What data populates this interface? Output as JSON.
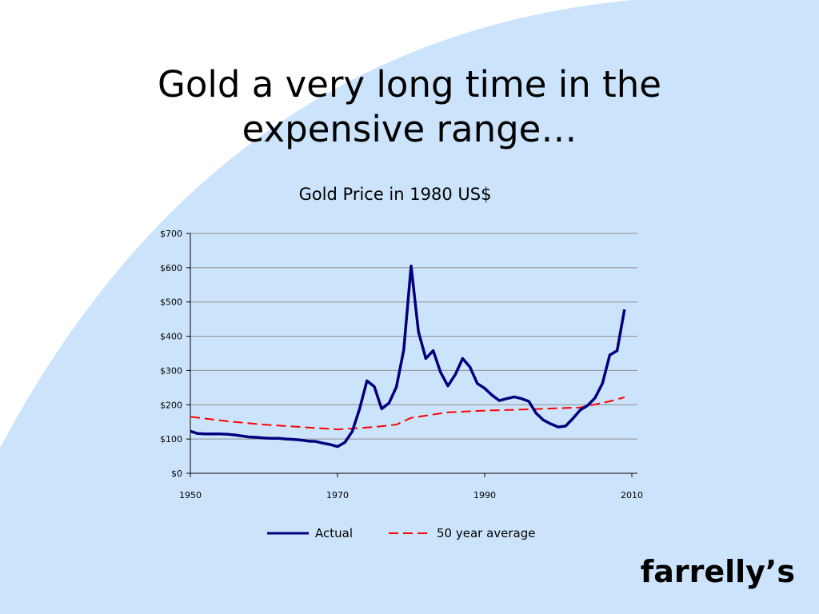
{
  "slide": {
    "title_line1": "Gold a very long time in the",
    "title_line2": "expensive range…",
    "brand": "farrelly’s"
  },
  "colors": {
    "background_arc": "#cce4fb",
    "actual": "#00007f",
    "average": "#ff0000",
    "grid": "#8c8c8c"
  },
  "chart_data": {
    "type": "line",
    "title": "Gold Price in 1980 US$",
    "xlabel": "",
    "ylabel": "",
    "xlim": [
      1950,
      2010
    ],
    "ylim": [
      0,
      700
    ],
    "x_ticks": [
      "1950",
      "1970",
      "1990",
      "2010"
    ],
    "x_tick_values": [
      1950,
      1970,
      1990,
      2010
    ],
    "y_ticks": [
      "$0",
      "$100",
      "$200",
      "$300",
      "$400",
      "$500",
      "$600",
      "$700"
    ],
    "y_tick_values": [
      0,
      100,
      200,
      300,
      400,
      500,
      600,
      700
    ],
    "grid": true,
    "legend_position": "bottom",
    "series": [
      {
        "name": "Actual",
        "style": "solid",
        "x": [
          1950,
          1951,
          1952,
          1953,
          1954,
          1955,
          1956,
          1957,
          1958,
          1959,
          1960,
          1961,
          1962,
          1963,
          1964,
          1965,
          1966,
          1967,
          1968,
          1969,
          1970,
          1971,
          1972,
          1973,
          1974,
          1975,
          1976,
          1977,
          1978,
          1979,
          1980,
          1981,
          1982,
          1983,
          1984,
          1985,
          1986,
          1987,
          1988,
          1989,
          1990,
          1991,
          1992,
          1993,
          1994,
          1995,
          1996,
          1997,
          1998,
          1999,
          2000,
          2001,
          2002,
          2003,
          2004,
          2005,
          2006,
          2007,
          2008,
          2009
        ],
        "values": [
          123,
          116,
          115,
          115,
          115,
          114,
          112,
          109,
          106,
          105,
          103,
          102,
          102,
          100,
          99,
          97,
          94,
          93,
          88,
          84,
          78,
          90,
          122,
          188,
          270,
          253,
          188,
          205,
          252,
          360,
          605,
          413,
          335,
          358,
          295,
          255,
          288,
          335,
          310,
          262,
          248,
          228,
          212,
          218,
          223,
          218,
          210,
          175,
          155,
          144,
          135,
          138,
          160,
          185,
          198,
          220,
          262,
          345,
          358,
          478
        ]
      },
      {
        "name": "50 year average",
        "style": "dashed",
        "x": [
          1950,
          1955,
          1960,
          1965,
          1970,
          1975,
          1978,
          1980,
          1985,
          1990,
          1995,
          2000,
          2003,
          2007,
          2009
        ],
        "values": [
          165,
          152,
          142,
          135,
          128,
          135,
          142,
          162,
          178,
          183,
          186,
          190,
          192,
          210,
          222
        ]
      }
    ]
  }
}
